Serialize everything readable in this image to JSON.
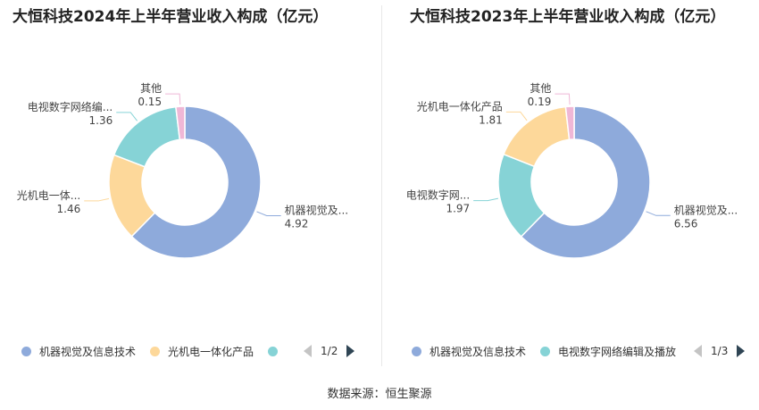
{
  "source_label": "数据来源：恒生聚源",
  "chart_data": [
    {
      "type": "pie",
      "variant": "donut",
      "title": "大恒科技2024年上半年营业收入构成（亿元）",
      "slices": [
        {
          "name": "机器视觉及信息技术",
          "label": "机器视觉及...",
          "value": 4.92,
          "value_label": "4.92",
          "color": "#8eaadb"
        },
        {
          "name": "光机电一体化产品",
          "label": "光机电一体...",
          "value": 1.46,
          "value_label": "1.46",
          "color": "#fdd89a"
        },
        {
          "name": "电视数字网络编辑及播放",
          "label": "电视数字网络编...",
          "value": 1.36,
          "value_label": "1.36",
          "color": "#86d3d6"
        },
        {
          "name": "其他",
          "label": "其他",
          "value": 0.15,
          "value_label": "0.15",
          "color": "#efb7d6"
        }
      ],
      "legend": {
        "position": "bottom",
        "items": [
          {
            "label": "机器视觉及信息技术",
            "color": "#8eaadb"
          },
          {
            "label": "光机电一体化产品",
            "color": "#fdd89a"
          },
          {
            "label": "",
            "color": "#86d3d6"
          }
        ],
        "page": "1/2"
      }
    },
    {
      "type": "pie",
      "variant": "donut",
      "title": "大恒科技2023年上半年营业收入构成（亿元）",
      "slices": [
        {
          "name": "机器视觉及信息技术",
          "label": "机器视觉及...",
          "value": 6.56,
          "value_label": "6.56",
          "color": "#8eaadb"
        },
        {
          "name": "电视数字网络编辑及播放",
          "label": "电视数字网...",
          "value": 1.97,
          "value_label": "1.97",
          "color": "#86d3d6"
        },
        {
          "name": "光机电一体化产品",
          "label": "光机电一体化产品",
          "value": 1.81,
          "value_label": "1.81",
          "color": "#fdd89a"
        },
        {
          "name": "其他",
          "label": "其他",
          "value": 0.19,
          "value_label": "0.19",
          "color": "#efb7d6"
        }
      ],
      "legend": {
        "position": "bottom",
        "items": [
          {
            "label": "机器视觉及信息技术",
            "color": "#8eaadb"
          },
          {
            "label": "电视数字网络编辑及播放",
            "color": "#86d3d6"
          }
        ],
        "page": "1/3"
      }
    }
  ]
}
